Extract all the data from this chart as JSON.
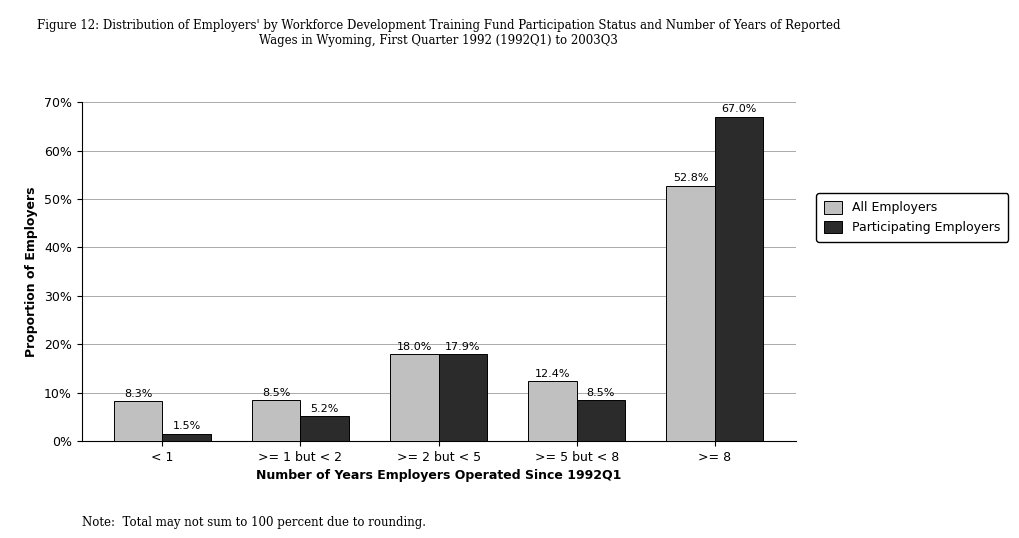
{
  "title_line1": "Figure 12: Distribution of Employers' by Workforce Development Training Fund Participation Status and Number of Years of Reported",
  "title_line2": "Wages in Wyoming, First Quarter 1992 (1992Q1) to 2003Q3",
  "categories": [
    "< 1",
    ">= 1 but < 2",
    ">= 2 but < 5",
    ">= 5 but < 8",
    ">= 8"
  ],
  "all_employers": [
    8.3,
    8.5,
    18.0,
    12.4,
    52.8
  ],
  "participating_employers": [
    1.5,
    5.2,
    17.9,
    8.5,
    67.0
  ],
  "all_color": "#c0c0c0",
  "participating_color": "#2b2b2b",
  "xlabel": "Number of Years Employers Operated Since 1992Q1",
  "ylabel": "Proportion of Employers",
  "ylim": [
    0,
    70
  ],
  "yticks": [
    0,
    10,
    20,
    30,
    40,
    50,
    60,
    70
  ],
  "ytick_labels": [
    "0%",
    "10%",
    "20%",
    "30%",
    "40%",
    "50%",
    "60%",
    "70%"
  ],
  "legend_labels": [
    "All Employers",
    "Participating Employers"
  ],
  "note": "Note:  Total may not sum to 100 percent due to rounding.",
  "bar_width": 0.35,
  "label_fontsize": 8,
  "title_fontsize": 8.5,
  "axis_fontsize": 9,
  "tick_fontsize": 9,
  "legend_fontsize": 9,
  "note_fontsize": 8.5
}
